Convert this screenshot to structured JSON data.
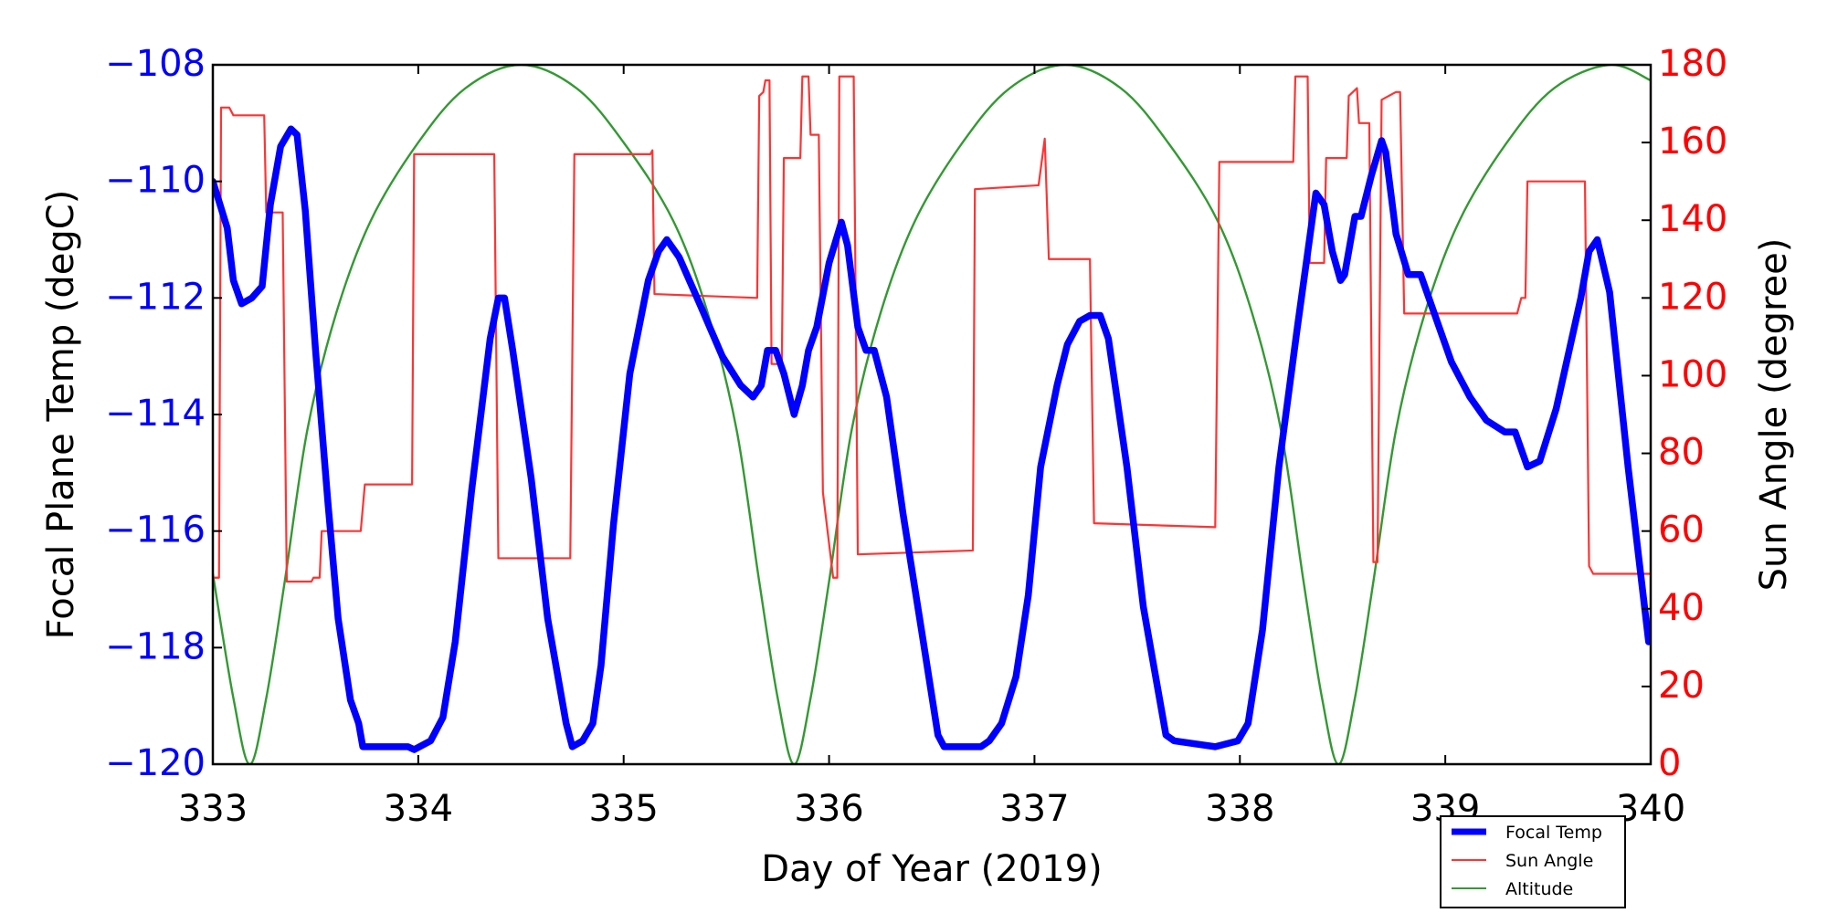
{
  "chart_data": {
    "type": "line",
    "xlabel": "Day of Year (2019)",
    "ylabel_left": "Focal Plane Temp (degC)",
    "ylabel_right": "Sun Angle (degree)",
    "xlim": [
      333,
      340
    ],
    "ylim_left": [
      -120,
      -108
    ],
    "ylim_right": [
      0,
      180
    ],
    "xticks": [
      "333",
      "334",
      "335",
      "336",
      "337",
      "338",
      "339",
      "340"
    ],
    "yticks_left": [
      "−120",
      "−118",
      "−116",
      "−114",
      "−112",
      "−110",
      "−108"
    ],
    "yticks_right": [
      "0",
      "20",
      "40",
      "60",
      "80",
      "100",
      "120",
      "140",
      "160",
      "180"
    ],
    "grid": false,
    "legend_position": "below-right",
    "colors": {
      "left_axis": "#0000ff",
      "right_axis": "#ff0000"
    },
    "series": [
      {
        "name": "Focal Temp",
        "axis": "left",
        "color": "#0000ff",
        "points": [
          [
            333.0,
            -110.0
          ],
          [
            333.07,
            -110.8
          ],
          [
            333.1,
            -111.7
          ],
          [
            333.14,
            -112.1
          ],
          [
            333.19,
            -112.0
          ],
          [
            333.24,
            -111.8
          ],
          [
            333.28,
            -110.4
          ],
          [
            333.33,
            -109.4
          ],
          [
            333.38,
            -109.1
          ],
          [
            333.41,
            -109.2
          ],
          [
            333.45,
            -110.5
          ],
          [
            333.5,
            -112.9
          ],
          [
            333.56,
            -115.5
          ],
          [
            333.61,
            -117.5
          ],
          [
            333.67,
            -118.9
          ],
          [
            333.71,
            -119.3
          ],
          [
            333.73,
            -119.7
          ],
          [
            333.95,
            -119.7
          ],
          [
            333.98,
            -119.75
          ],
          [
            334.06,
            -119.6
          ],
          [
            334.12,
            -119.2
          ],
          [
            334.18,
            -117.9
          ],
          [
            334.26,
            -115.3
          ],
          [
            334.35,
            -112.7
          ],
          [
            334.39,
            -112.0
          ],
          [
            334.42,
            -112.0
          ],
          [
            334.46,
            -112.9
          ],
          [
            334.55,
            -115.1
          ],
          [
            334.63,
            -117.5
          ],
          [
            334.72,
            -119.3
          ],
          [
            334.75,
            -119.7
          ],
          [
            334.8,
            -119.6
          ],
          [
            334.85,
            -119.3
          ],
          [
            334.89,
            -118.3
          ],
          [
            334.95,
            -115.9
          ],
          [
            335.03,
            -113.3
          ],
          [
            335.12,
            -111.7
          ],
          [
            335.17,
            -111.2
          ],
          [
            335.21,
            -111.0
          ],
          [
            335.27,
            -111.3
          ],
          [
            335.37,
            -112.1
          ],
          [
            335.48,
            -113.0
          ],
          [
            335.57,
            -113.5
          ],
          [
            335.63,
            -113.7
          ],
          [
            335.67,
            -113.5
          ],
          [
            335.7,
            -112.9
          ],
          [
            335.74,
            -112.9
          ],
          [
            335.78,
            -113.3
          ],
          [
            335.83,
            -114.0
          ],
          [
            335.87,
            -113.5
          ],
          [
            335.9,
            -112.9
          ],
          [
            335.94,
            -112.5
          ],
          [
            336.0,
            -111.4
          ],
          [
            336.06,
            -110.7
          ],
          [
            336.09,
            -111.1
          ],
          [
            336.14,
            -112.5
          ],
          [
            336.18,
            -112.9
          ],
          [
            336.22,
            -112.9
          ],
          [
            336.28,
            -113.7
          ],
          [
            336.36,
            -115.7
          ],
          [
            336.45,
            -117.7
          ],
          [
            336.53,
            -119.5
          ],
          [
            336.56,
            -119.7
          ],
          [
            336.74,
            -119.7
          ],
          [
            336.78,
            -119.6
          ],
          [
            336.84,
            -119.3
          ],
          [
            336.91,
            -118.5
          ],
          [
            336.97,
            -117.1
          ],
          [
            337.03,
            -114.9
          ],
          [
            337.11,
            -113.5
          ],
          [
            337.16,
            -112.8
          ],
          [
            337.22,
            -112.4
          ],
          [
            337.27,
            -112.3
          ],
          [
            337.32,
            -112.3
          ],
          [
            337.36,
            -112.7
          ],
          [
            337.45,
            -114.9
          ],
          [
            337.53,
            -117.3
          ],
          [
            337.64,
            -119.5
          ],
          [
            337.68,
            -119.6
          ],
          [
            337.88,
            -119.7
          ],
          [
            337.99,
            -119.6
          ],
          [
            338.04,
            -119.3
          ],
          [
            338.11,
            -117.7
          ],
          [
            338.19,
            -114.9
          ],
          [
            338.28,
            -112.5
          ],
          [
            338.37,
            -110.2
          ],
          [
            338.41,
            -110.4
          ],
          [
            338.45,
            -111.2
          ],
          [
            338.49,
            -111.7
          ],
          [
            338.51,
            -111.6
          ],
          [
            338.56,
            -110.6
          ],
          [
            338.59,
            -110.6
          ],
          [
            338.64,
            -109.9
          ],
          [
            338.69,
            -109.3
          ],
          [
            338.71,
            -109.5
          ],
          [
            338.76,
            -110.9
          ],
          [
            338.82,
            -111.6
          ],
          [
            338.88,
            -111.6
          ],
          [
            338.95,
            -112.3
          ],
          [
            339.03,
            -113.1
          ],
          [
            339.12,
            -113.7
          ],
          [
            339.2,
            -114.1
          ],
          [
            339.29,
            -114.3
          ],
          [
            339.34,
            -114.3
          ],
          [
            339.4,
            -114.9
          ],
          [
            339.46,
            -114.8
          ],
          [
            339.54,
            -113.9
          ],
          [
            339.66,
            -112.0
          ],
          [
            339.7,
            -111.2
          ],
          [
            339.74,
            -111.0
          ],
          [
            339.8,
            -111.9
          ],
          [
            339.89,
            -114.9
          ],
          [
            339.99,
            -117.9
          ]
        ]
      },
      {
        "name": "Sun Angle",
        "axis": "right",
        "color": "#ff3333",
        "points": [
          [
            333.0,
            48
          ],
          [
            333.03,
            48
          ],
          [
            333.04,
            169
          ],
          [
            333.08,
            169
          ],
          [
            333.1,
            167
          ],
          [
            333.25,
            167
          ],
          [
            333.26,
            142
          ],
          [
            333.34,
            142
          ],
          [
            333.36,
            47
          ],
          [
            333.48,
            47
          ],
          [
            333.49,
            48
          ],
          [
            333.52,
            48
          ],
          [
            333.53,
            60
          ],
          [
            333.72,
            60
          ],
          [
            333.74,
            72
          ],
          [
            333.97,
            72
          ],
          [
            333.98,
            157
          ],
          [
            334.37,
            157
          ],
          [
            334.39,
            53
          ],
          [
            334.74,
            53
          ],
          [
            334.76,
            157
          ],
          [
            335.13,
            157
          ],
          [
            335.14,
            158
          ],
          [
            335.15,
            121
          ],
          [
            335.65,
            120
          ],
          [
            335.66,
            172
          ],
          [
            335.68,
            173
          ],
          [
            335.69,
            176
          ],
          [
            335.71,
            176
          ],
          [
            335.72,
            103
          ],
          [
            335.77,
            103
          ],
          [
            335.78,
            156
          ],
          [
            335.86,
            156
          ],
          [
            335.87,
            177
          ],
          [
            335.9,
            177
          ],
          [
            335.91,
            162
          ],
          [
            335.95,
            162
          ],
          [
            335.97,
            70
          ],
          [
            336.02,
            48
          ],
          [
            336.04,
            48
          ],
          [
            336.05,
            177
          ],
          [
            336.12,
            177
          ],
          [
            336.14,
            54
          ],
          [
            336.7,
            55
          ],
          [
            336.71,
            148
          ],
          [
            337.02,
            149
          ],
          [
            337.05,
            161
          ],
          [
            337.07,
            130
          ],
          [
            337.27,
            130
          ],
          [
            337.29,
            62
          ],
          [
            337.88,
            61
          ],
          [
            337.9,
            155
          ],
          [
            338.26,
            155
          ],
          [
            338.27,
            177
          ],
          [
            338.33,
            177
          ],
          [
            338.34,
            129
          ],
          [
            338.41,
            129
          ],
          [
            338.42,
            156
          ],
          [
            338.52,
            156
          ],
          [
            338.53,
            172
          ],
          [
            338.57,
            174
          ],
          [
            338.58,
            165
          ],
          [
            338.63,
            165
          ],
          [
            338.65,
            52
          ],
          [
            338.67,
            52
          ],
          [
            338.69,
            171
          ],
          [
            338.76,
            173
          ],
          [
            338.78,
            173
          ],
          [
            338.8,
            116
          ],
          [
            339.35,
            116
          ],
          [
            339.37,
            120
          ],
          [
            339.39,
            120
          ],
          [
            339.4,
            150
          ],
          [
            339.68,
            150
          ],
          [
            339.7,
            51
          ],
          [
            339.72,
            49
          ],
          [
            340,
            49
          ]
        ]
      },
      {
        "name": "Altitude",
        "axis": "right",
        "color": "#339933",
        "points": [
          [
            333.0,
            49
          ],
          [
            333.1,
            17
          ],
          [
            333.18,
            0
          ],
          [
            333.26,
            17
          ],
          [
            333.35,
            47
          ],
          [
            333.46,
            86
          ],
          [
            333.6,
            116
          ],
          [
            333.77,
            140
          ],
          [
            334.0,
            160
          ],
          [
            334.23,
            174
          ],
          [
            334.5,
            180
          ],
          [
            334.77,
            174
          ],
          [
            335.0,
            160
          ],
          [
            335.24,
            140
          ],
          [
            335.41,
            116
          ],
          [
            335.55,
            86
          ],
          [
            335.66,
            47
          ],
          [
            335.75,
            17
          ],
          [
            335.83,
            0
          ],
          [
            335.91,
            17
          ],
          [
            336.0,
            47
          ],
          [
            336.11,
            86
          ],
          [
            336.25,
            116
          ],
          [
            336.42,
            140
          ],
          [
            336.65,
            160
          ],
          [
            336.88,
            174
          ],
          [
            337.15,
            180
          ],
          [
            337.42,
            174
          ],
          [
            337.65,
            160
          ],
          [
            337.89,
            140
          ],
          [
            338.06,
            116
          ],
          [
            338.2,
            86
          ],
          [
            338.31,
            47
          ],
          [
            338.4,
            17
          ],
          [
            338.48,
            0
          ],
          [
            338.56,
            17
          ],
          [
            338.65,
            47
          ],
          [
            338.76,
            86
          ],
          [
            338.9,
            116
          ],
          [
            339.07,
            140
          ],
          [
            339.3,
            160
          ],
          [
            339.53,
            174
          ],
          [
            339.8,
            180
          ],
          [
            340.0,
            176
          ]
        ]
      }
    ]
  }
}
